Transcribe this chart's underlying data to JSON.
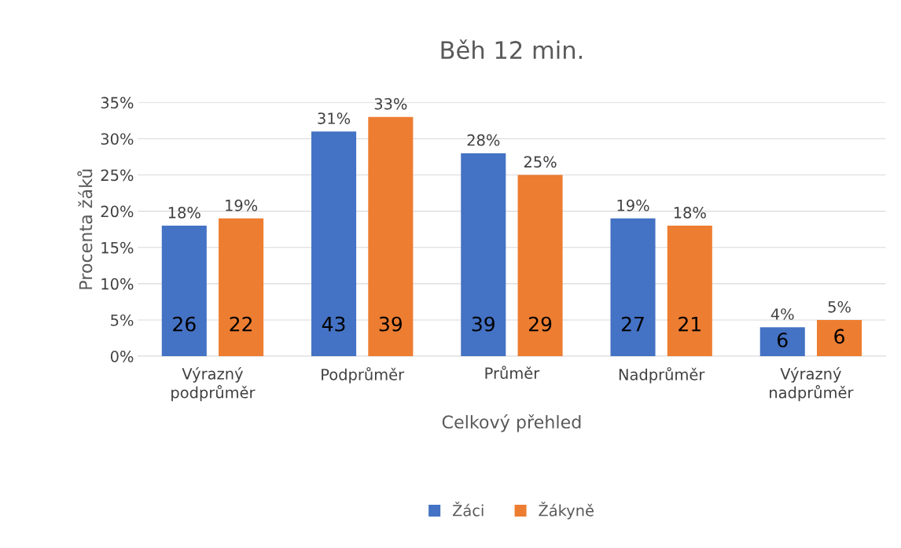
{
  "chart_data": {
    "type": "bar",
    "title": "Běh 12 min.",
    "xlabel": "Celkový přehled",
    "ylabel": "Procenta žáků",
    "categories": [
      "Výrazný\npodprůměr",
      "Podprůměr",
      "Průměr",
      "Nadprůměr",
      "Výrazný\nnadprůměr"
    ],
    "series": [
      {
        "name": "Žáci",
        "color": "#4472c4",
        "values": [
          18,
          31,
          28,
          19,
          4
        ],
        "value_labels": [
          "18%",
          "31%",
          "28%",
          "19%",
          "4%"
        ]
      },
      {
        "name": "Žákyně",
        "color": "#ed7d31",
        "values": [
          19,
          33,
          25,
          18,
          5
        ],
        "value_labels": [
          "19%",
          "33%",
          "25%",
          "18%",
          "5%"
        ]
      }
    ],
    "annotations": [
      "26",
      "22",
      "43",
      "39",
      "39",
      "29",
      "27",
      "21",
      "6",
      "6"
    ],
    "ylim": [
      0,
      35
    ],
    "yticks": [
      {
        "value": 0,
        "label": "0%"
      },
      {
        "value": 5,
        "label": "5%"
      },
      {
        "value": 10,
        "label": "10%"
      },
      {
        "value": 15,
        "label": "15%"
      },
      {
        "value": 20,
        "label": "20%"
      },
      {
        "value": 25,
        "label": "25%"
      },
      {
        "value": 30,
        "label": "30%"
      },
      {
        "value": 35,
        "label": "35%"
      }
    ],
    "grid": "y",
    "legend": "bottom"
  }
}
